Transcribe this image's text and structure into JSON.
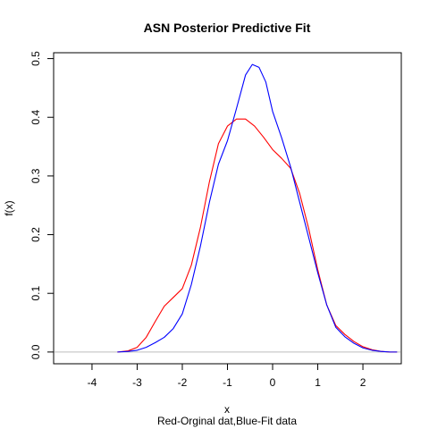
{
  "chart_data": {
    "type": "line",
    "title": "ASN Posterior Predictive Fit",
    "xlabel": "x",
    "ylabel": "f(x)",
    "subtitle": "Red-Orginal dat,Blue-Fit data",
    "xlim": [
      -4.85,
      2.85
    ],
    "ylim": [
      -0.02,
      0.51
    ],
    "xticks": [
      "-4",
      "-3",
      "-2",
      "-1",
      "0",
      "1",
      "2"
    ],
    "yticks": [
      "0.0",
      "0.1",
      "0.2",
      "0.3",
      "0.4",
      "0.5"
    ],
    "reference_line": {
      "y": 0,
      "color": "#bebebe"
    },
    "grid": false,
    "legend": "none",
    "series": [
      {
        "color": "#ff0000",
        "points": [
          [
            -3.43,
            0.0
          ],
          [
            -3.2,
            0.002
          ],
          [
            -3.0,
            0.008
          ],
          [
            -2.8,
            0.025
          ],
          [
            -2.6,
            0.052
          ],
          [
            -2.4,
            0.078
          ],
          [
            -2.2,
            0.093
          ],
          [
            -2.0,
            0.108
          ],
          [
            -1.8,
            0.148
          ],
          [
            -1.6,
            0.212
          ],
          [
            -1.4,
            0.29
          ],
          [
            -1.2,
            0.355
          ],
          [
            -1.0,
            0.385
          ],
          [
            -0.8,
            0.397
          ],
          [
            -0.6,
            0.397
          ],
          [
            -0.4,
            0.385
          ],
          [
            -0.2,
            0.366
          ],
          [
            0.0,
            0.345
          ],
          [
            0.2,
            0.33
          ],
          [
            0.4,
            0.313
          ],
          [
            0.6,
            0.27
          ],
          [
            0.8,
            0.21
          ],
          [
            1.0,
            0.14
          ],
          [
            1.2,
            0.08
          ],
          [
            1.4,
            0.045
          ],
          [
            1.6,
            0.03
          ],
          [
            1.8,
            0.018
          ],
          [
            2.0,
            0.009
          ],
          [
            2.2,
            0.004
          ],
          [
            2.4,
            0.001
          ],
          [
            2.6,
            0.0
          ],
          [
            2.75,
            0.0
          ]
        ]
      },
      {
        "color": "#0000ff",
        "points": [
          [
            -3.43,
            0.0
          ],
          [
            -3.2,
            0.001
          ],
          [
            -3.0,
            0.003
          ],
          [
            -2.8,
            0.008
          ],
          [
            -2.6,
            0.016
          ],
          [
            -2.4,
            0.025
          ],
          [
            -2.2,
            0.04
          ],
          [
            -2.0,
            0.065
          ],
          [
            -1.8,
            0.115
          ],
          [
            -1.6,
            0.18
          ],
          [
            -1.4,
            0.255
          ],
          [
            -1.2,
            0.32
          ],
          [
            -1.0,
            0.36
          ],
          [
            -0.8,
            0.415
          ],
          [
            -0.6,
            0.472
          ],
          [
            -0.45,
            0.49
          ],
          [
            -0.3,
            0.485
          ],
          [
            -0.15,
            0.46
          ],
          [
            0.0,
            0.41
          ],
          [
            0.2,
            0.365
          ],
          [
            0.4,
            0.315
          ],
          [
            0.6,
            0.255
          ],
          [
            0.8,
            0.195
          ],
          [
            1.0,
            0.135
          ],
          [
            1.2,
            0.08
          ],
          [
            1.4,
            0.042
          ],
          [
            1.6,
            0.026
          ],
          [
            1.8,
            0.015
          ],
          [
            2.0,
            0.007
          ],
          [
            2.2,
            0.003
          ],
          [
            2.4,
            0.001
          ],
          [
            2.6,
            0.0
          ],
          [
            2.75,
            0.0
          ]
        ]
      }
    ]
  }
}
